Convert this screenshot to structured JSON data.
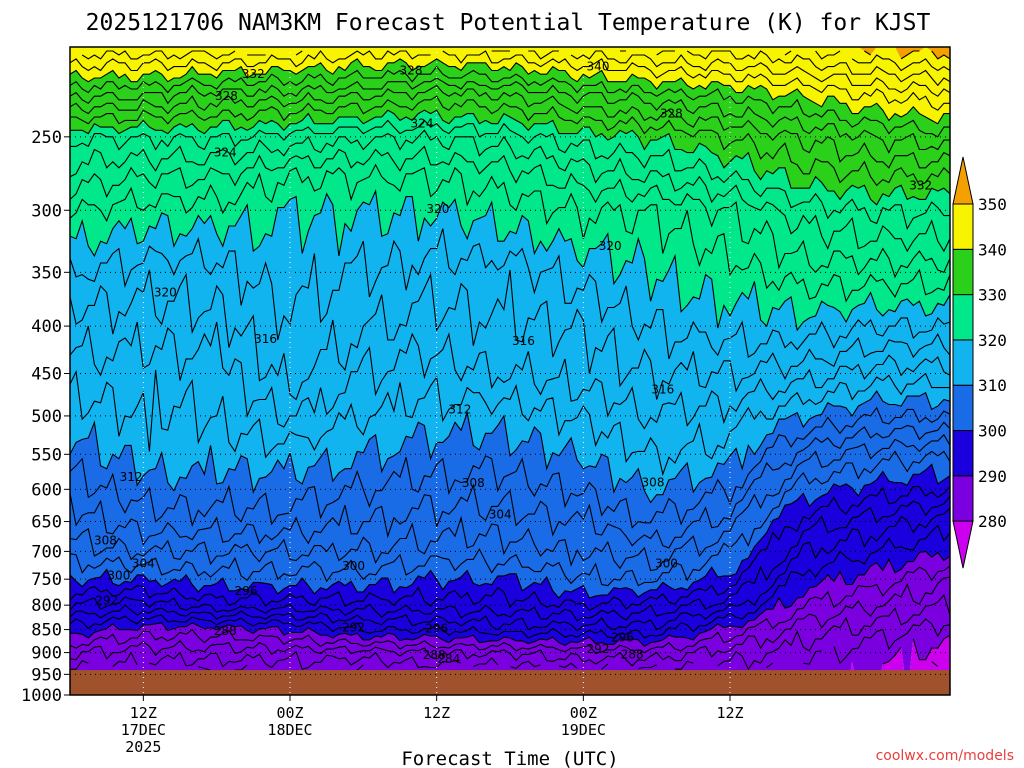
{
  "chart_data": {
    "type": "contour",
    "title": "2025121706 NAM3KM Forecast Potential Temperature (K) for KJST",
    "xlabel": "Forecast Time (UTC)",
    "ylabel": "",
    "credit": "coolwx.com/models",
    "forecast_hours": [
      0,
      72
    ],
    "y_ticks": [
      250,
      300,
      350,
      400,
      450,
      500,
      550,
      600,
      650,
      700,
      750,
      800,
      850,
      900,
      950,
      1000
    ],
    "y_tick_labels": [
      "250",
      "300",
      "350",
      "400",
      "450",
      "500",
      "550",
      "600",
      "650",
      "700",
      "750",
      "800",
      "850",
      "900",
      "950",
      "1000"
    ],
    "ylim": [
      200,
      1000
    ],
    "surface_pressure": 940,
    "x_ticks": [
      {
        "hour": 6,
        "line1": "12Z",
        "line2": "17DEC",
        "line3": "2025"
      },
      {
        "hour": 18,
        "line1": "00Z",
        "line2": "18DEC",
        "line3": ""
      },
      {
        "hour": 30,
        "line1": "12Z",
        "line2": "",
        "line3": ""
      },
      {
        "hour": 42,
        "line1": "00Z",
        "line2": "19DEC",
        "line3": ""
      },
      {
        "hour": 54,
        "line1": "12Z",
        "line2": "",
        "line3": ""
      }
    ],
    "colorbar": {
      "levels": [
        280,
        290,
        300,
        310,
        320,
        330,
        340,
        350
      ],
      "labels": [
        "280",
        "290",
        "300",
        "310",
        "320",
        "330",
        "340",
        "350"
      ],
      "colors": [
        "#cc00ee",
        "#7a00e0",
        "#1a00dc",
        "#1a6be6",
        "#12b4f0",
        "#00e88a",
        "#2ad01a",
        "#f8f400",
        "#f4a000"
      ]
    },
    "contour_labels": [
      {
        "text": "332",
        "hour": 15.0,
        "p": 214
      },
      {
        "text": "328",
        "hour": 12.8,
        "p": 226
      },
      {
        "text": "324",
        "hour": 12.7,
        "p": 260
      },
      {
        "text": "320",
        "hour": 7.8,
        "p": 368
      },
      {
        "text": "316",
        "hour": 16.0,
        "p": 413
      },
      {
        "text": "312",
        "hour": 5.0,
        "p": 582
      },
      {
        "text": "308",
        "hour": 2.9,
        "p": 681
      },
      {
        "text": "304",
        "hour": 6.0,
        "p": 721
      },
      {
        "text": "300",
        "hour": 4.0,
        "p": 743
      },
      {
        "text": "296",
        "hour": 14.4,
        "p": 772
      },
      {
        "text": "292",
        "hour": 3.0,
        "p": 791
      },
      {
        "text": "288",
        "hour": 12.7,
        "p": 853
      },
      {
        "text": "328",
        "hour": 27.9,
        "p": 212
      },
      {
        "text": "324",
        "hour": 28.8,
        "p": 242
      },
      {
        "text": "320",
        "hour": 30.1,
        "p": 299
      },
      {
        "text": "312",
        "hour": 31.9,
        "p": 492
      },
      {
        "text": "308",
        "hour": 33.0,
        "p": 591
      },
      {
        "text": "304",
        "hour": 35.2,
        "p": 639
      },
      {
        "text": "300",
        "hour": 23.2,
        "p": 726
      },
      {
        "text": "292",
        "hour": 23.2,
        "p": 846
      },
      {
        "text": "296",
        "hour": 30.0,
        "p": 848
      },
      {
        "text": "288",
        "hour": 29.8,
        "p": 905
      },
      {
        "text": "284",
        "hour": 31.0,
        "p": 914
      },
      {
        "text": "340",
        "hour": 43.2,
        "p": 210
      },
      {
        "text": "328",
        "hour": 49.2,
        "p": 236
      },
      {
        "text": "320",
        "hour": 44.2,
        "p": 328
      },
      {
        "text": "316",
        "hour": 37.1,
        "p": 415
      },
      {
        "text": "316",
        "hour": 48.5,
        "p": 468
      },
      {
        "text": "308",
        "hour": 47.7,
        "p": 590
      },
      {
        "text": "300",
        "hour": 48.8,
        "p": 721
      },
      {
        "text": "296",
        "hour": 45.2,
        "p": 867
      },
      {
        "text": "292",
        "hour": 43.2,
        "p": 892
      },
      {
        "text": "288",
        "hour": 46.0,
        "p": 904
      },
      {
        "text": "332",
        "hour": 69.6,
        "p": 282
      }
    ]
  }
}
